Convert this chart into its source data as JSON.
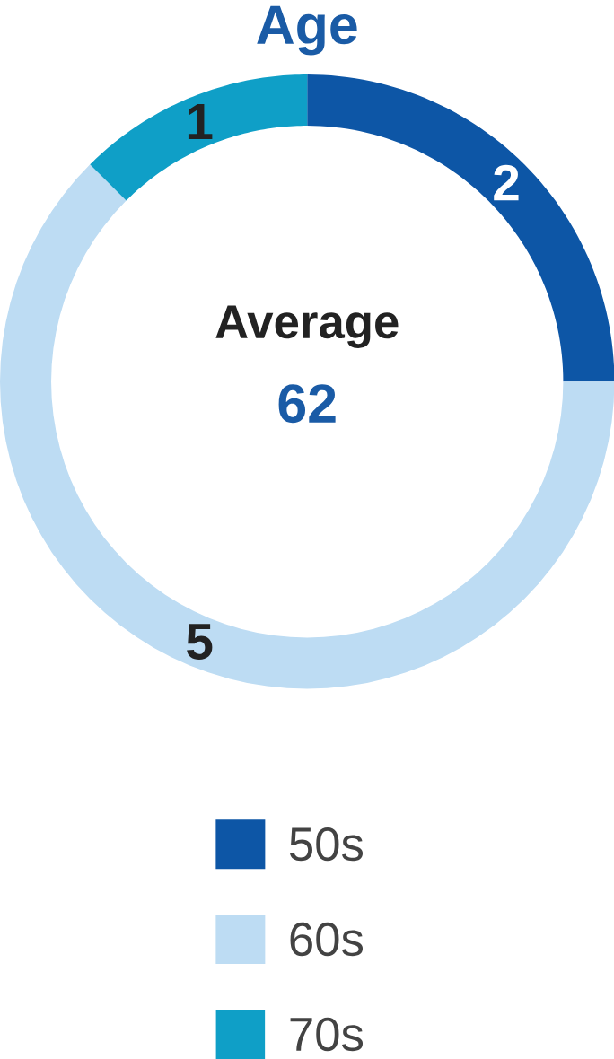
{
  "chart_data": {
    "type": "donut",
    "title": "Age",
    "categories": [
      "50s",
      "60s",
      "70s"
    ],
    "values": [
      2,
      5,
      1
    ],
    "colors": [
      "#0d56a6",
      "#bddcf3",
      "#0f9fc7"
    ],
    "data_labels": true,
    "legend": "bottom",
    "annotations": [
      "Average",
      "62"
    ]
  }
}
